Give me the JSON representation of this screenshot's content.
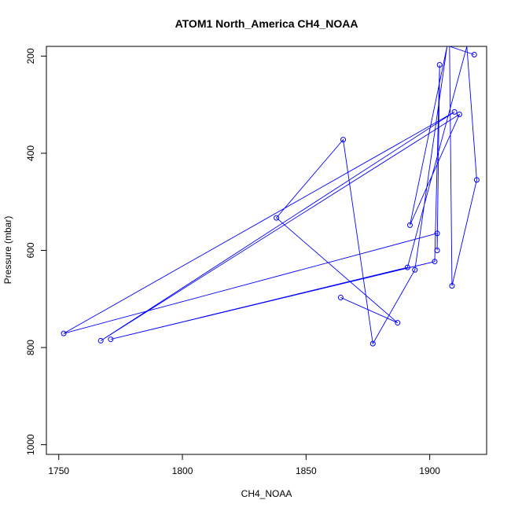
{
  "chart_data": {
    "type": "line",
    "title": "ATOM1 North_America CH4_NOAA",
    "xlabel": "CH4_NOAA",
    "ylabel": "Pressure (mbar)",
    "xlim": [
      1745,
      1923
    ],
    "ylim": [
      1020,
      180
    ],
    "y_reversed": true,
    "x_ticks": [
      1750,
      1800,
      1850,
      1900
    ],
    "y_ticks": [
      200,
      400,
      600,
      800,
      1000
    ],
    "grid": false,
    "markers": "open-circle",
    "line_color": "#0000ff",
    "series": [
      {
        "points": [
          [
            1864,
            697
          ],
          [
            1887,
            749
          ],
          [
            1838,
            533
          ],
          [
            1865,
            372
          ],
          [
            1877,
            792
          ],
          [
            1894,
            640
          ],
          [
            1907,
            180
          ],
          [
            1892,
            548
          ],
          [
            1912,
            320
          ],
          [
            1767,
            786
          ],
          [
            1910,
            315
          ],
          [
            1752,
            771
          ],
          [
            1903,
            565
          ],
          [
            1903,
            600
          ],
          [
            1904,
            218
          ],
          [
            1902,
            623
          ],
          [
            1771,
            783
          ],
          [
            1891,
            635
          ],
          [
            1915,
            180
          ],
          [
            1919,
            455
          ],
          [
            1909,
            673
          ],
          [
            1908,
            180
          ],
          [
            1918,
            197
          ]
        ]
      }
    ]
  }
}
